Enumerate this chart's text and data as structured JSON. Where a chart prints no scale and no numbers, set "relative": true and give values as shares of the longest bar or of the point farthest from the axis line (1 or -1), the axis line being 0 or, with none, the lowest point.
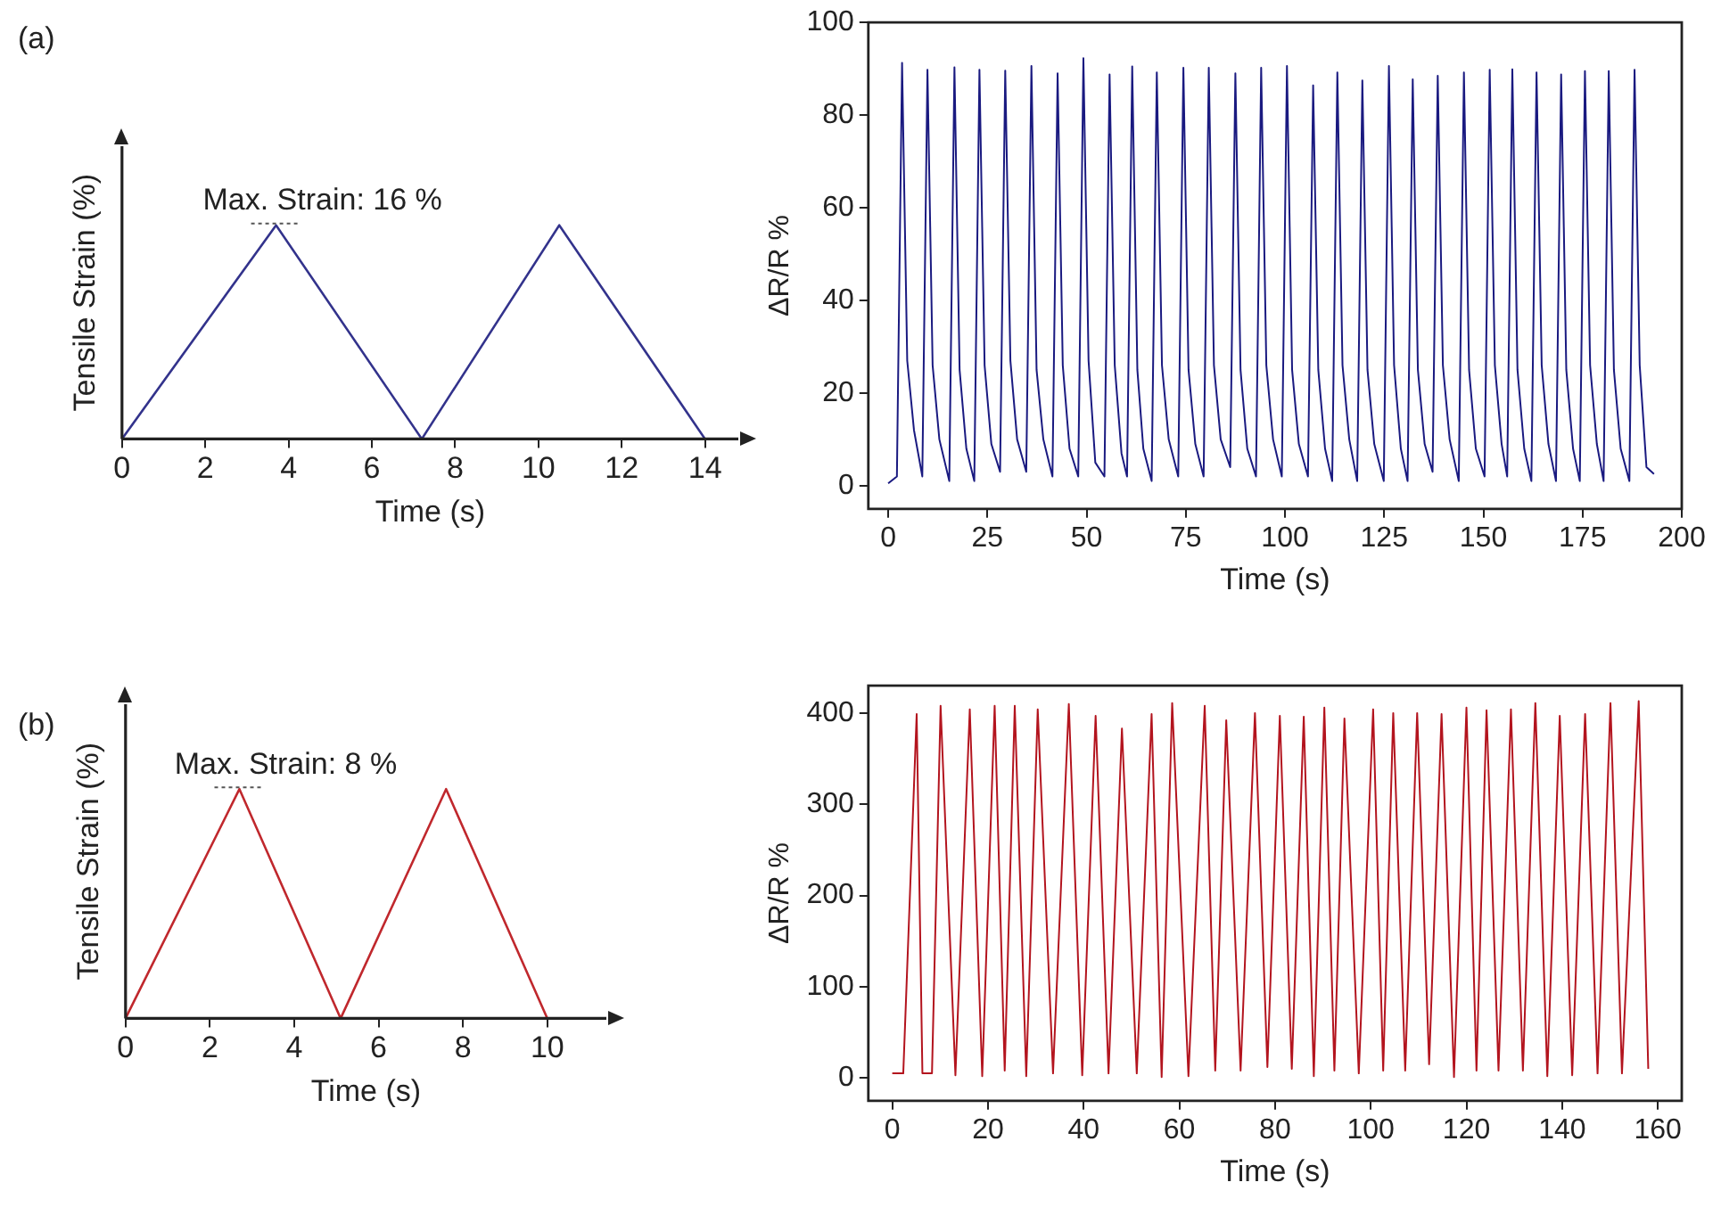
{
  "chart_data": [
    {
      "type": "line",
      "title": "(a)",
      "relative": true,
      "tick_labels": "x",
      "xlabel": "Time (s)",
      "ylabel": "Tensile Strain (%)",
      "xlim": [
        0,
        14.8
      ],
      "xticks": [
        0,
        2,
        4,
        6,
        8,
        10,
        12,
        14
      ],
      "annotations": [
        {
          "text": "Max. Strain: 16 %",
          "x": 3.7,
          "y": 1
        }
      ],
      "series": [
        {
          "color": "#33338c",
          "x": [
            0,
            3.7,
            7.2,
            10.5,
            14
          ],
          "values": [
            0,
            1,
            0,
            1,
            0
          ]
        }
      ]
    },
    {
      "type": "line",
      "xlabel": "Time (s)",
      "ylabel": "ΔR/R %",
      "xlim": [
        -5,
        200
      ],
      "xticks": [
        0,
        25,
        50,
        75,
        100,
        125,
        150,
        175,
        200
      ],
      "ylim": [
        -5,
        100
      ],
      "yticks": [
        0,
        20,
        40,
        60,
        80,
        100
      ],
      "series": [
        {
          "color": "#1a1a80",
          "x": [
            0,
            2.2,
            3.5,
            4.8,
            6.5,
            8.6,
            9.9,
            11.2,
            12.9,
            15.4,
            16.7,
            18.0,
            19.7,
            21.7,
            23.0,
            24.3,
            26.0,
            28.2,
            29.5,
            30.8,
            32.5,
            34.8,
            36.1,
            37.4,
            39.1,
            41.4,
            42.7,
            44.0,
            45.7,
            47.9,
            49.2,
            50.5,
            52.2,
            54.5,
            55.8,
            57.1,
            58.8,
            60.2,
            61.5,
            62.8,
            64.3,
            66.4,
            67.7,
            69.0,
            70.7,
            73.1,
            74.4,
            75.7,
            77.4,
            79.5,
            80.8,
            82.1,
            83.8,
            86.2,
            87.5,
            88.8,
            90.5,
            92.7,
            94.0,
            95.3,
            97.0,
            99.2,
            100.5,
            101.8,
            103.5,
            105.8,
            107.1,
            108.4,
            110.1,
            111.9,
            113.2,
            114.5,
            116.2,
            118.2,
            119.5,
            120.8,
            122.5,
            124.9,
            126.2,
            127.5,
            129.2,
            130.9,
            132.2,
            133.5,
            135.2,
            137.2,
            138.5,
            139.8,
            141.5,
            143.8,
            145.1,
            146.4,
            148.1,
            150.3,
            151.6,
            152.9,
            154.6,
            156.0,
            157.3,
            158.6,
            160.3,
            162.1,
            163.4,
            164.7,
            166.4,
            168.3,
            169.6,
            170.9,
            172.6,
            174.3,
            175.6,
            176.9,
            178.6,
            180.3,
            181.6,
            182.9,
            184.6,
            186.8,
            188.1,
            189.4,
            191.1,
            193
          ],
          "values": [
            0.5,
            2,
            91.3,
            27,
            12,
            2,
            89.8,
            26,
            10,
            1,
            90.3,
            25,
            8,
            1,
            89.8,
            26,
            9,
            3,
            89.6,
            27,
            10,
            3,
            90.6,
            25,
            10,
            2,
            89,
            26,
            8,
            2,
            92.3,
            27,
            5,
            2,
            88.8,
            26,
            7,
            2,
            90.5,
            25,
            8,
            1,
            89.2,
            26,
            10,
            2,
            90.2,
            25,
            9,
            2,
            90.2,
            26,
            10,
            4,
            89,
            25,
            8,
            2,
            90.2,
            26,
            10,
            2,
            90.6,
            25,
            9,
            2,
            86.4,
            25,
            8,
            1,
            89.2,
            26,
            10,
            1,
            87.5,
            25,
            9,
            1,
            90.6,
            26,
            8,
            1,
            87.7,
            25,
            9,
            3,
            88.5,
            26,
            10,
            1,
            89.2,
            25,
            8,
            2,
            89.8,
            26,
            9,
            2,
            89.9,
            25,
            8,
            1,
            89.2,
            26,
            9,
            1,
            88.8,
            25,
            8,
            1,
            89.5,
            26,
            9,
            1,
            89.5,
            25,
            8,
            1,
            89.8,
            26,
            4,
            2.5
          ]
        }
      ]
    },
    {
      "type": "line",
      "title": "(b)",
      "relative": true,
      "tick_labels": "x",
      "xlabel": "Time (s)",
      "ylabel": "Tensile Strain (%)",
      "xlim": [
        0,
        11.4
      ],
      "xticks": [
        0,
        2,
        4,
        6,
        8,
        10
      ],
      "annotations": [
        {
          "text": "Max. Strain: 8 %",
          "x": 2.7,
          "y": 1
        }
      ],
      "series": [
        {
          "color": "#c0282d",
          "x": [
            0,
            2.7,
            5.1,
            7.6,
            10
          ],
          "values": [
            0,
            1,
            0,
            1,
            0
          ]
        }
      ]
    },
    {
      "type": "line",
      "xlabel": "Time (s)",
      "ylabel": "ΔR/R %",
      "xlim": [
        -5,
        165
      ],
      "xticks": [
        0,
        20,
        40,
        60,
        80,
        100,
        120,
        140,
        160
      ],
      "ylim": [
        -25,
        430
      ],
      "yticks": [
        0,
        100,
        200,
        300,
        400
      ],
      "series": [
        {
          "color": "#b3141e",
          "x": [
            0,
            2.3,
            5.1,
            6.3,
            8.3,
            10.1,
            13.2,
            16.2,
            18.8,
            21.4,
            23.5,
            25.6,
            28.0,
            30.4,
            33.6,
            36.9,
            39.7,
            42.5,
            45.2,
            48.0,
            51.1,
            54.2,
            56.3,
            58.5,
            61.9,
            65.3,
            67.5,
            69.8,
            72.8,
            75.8,
            78.4,
            81.0,
            83.5,
            86.0,
            88.1,
            90.3,
            92.4,
            94.5,
            97.5,
            100.5,
            102.6,
            104.7,
            107.2,
            109.7,
            112.2,
            114.8,
            117.4,
            120.0,
            122.1,
            124.2,
            126.7,
            129.3,
            131.8,
            134.4,
            136.9,
            139.5,
            142.1,
            144.8,
            147.4,
            150.1,
            152.5,
            156.0,
            158
          ],
          "values": [
            5,
            5,
            399,
            5,
            5,
            408,
            3,
            404,
            2,
            408,
            8,
            408,
            2,
            404,
            5,
            410,
            3,
            397,
            5,
            383,
            5,
            399,
            1,
            411,
            2,
            408,
            8,
            392,
            8,
            400,
            12,
            397,
            10,
            396,
            2,
            406,
            8,
            394,
            5,
            404,
            8,
            400,
            8,
            400,
            15,
            399,
            1,
            406,
            8,
            403,
            8,
            404,
            8,
            411,
            2,
            397,
            3,
            399,
            5,
            411,
            5,
            413,
            10
          ]
        }
      ]
    }
  ]
}
